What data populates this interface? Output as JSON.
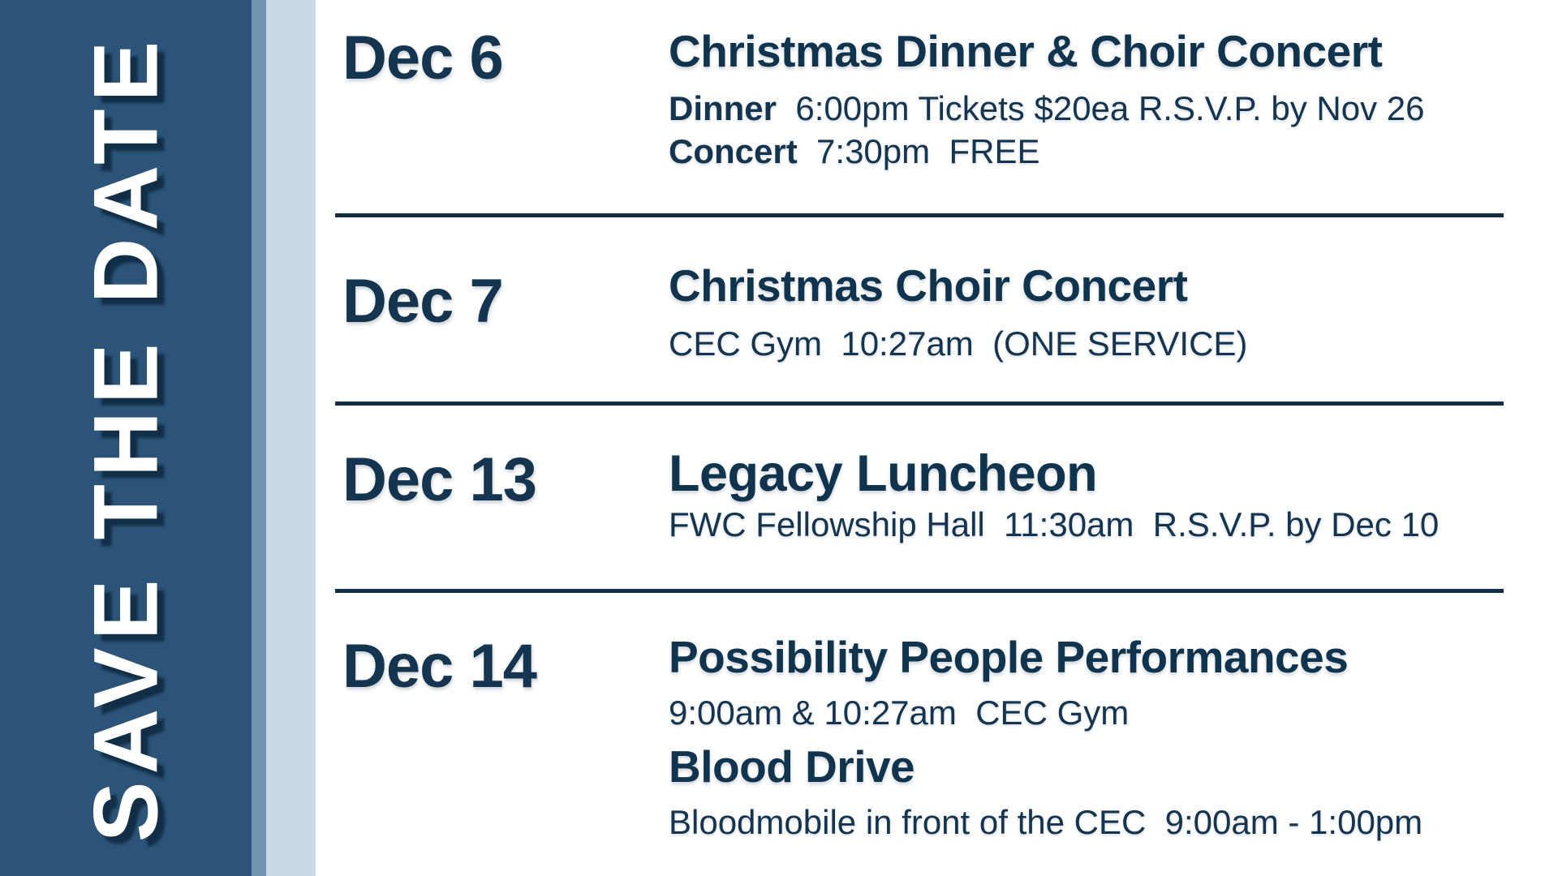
{
  "banner": {
    "text": "SAVE THE DATE"
  },
  "colors": {
    "panel": "#2B5478",
    "stripe_medium": "#7093B1",
    "stripe_light": "#C9D9E7",
    "text_navy": "#14344F",
    "divider": "#132E46",
    "banner_text": "#FFFFFF"
  },
  "events": [
    {
      "date": "Dec 6",
      "title": "Christmas Dinner & Choir Concert",
      "lines": [
        {
          "label": "Dinner",
          "text": "  6:00pm Tickets $20ea R.S.V.P. by Nov 26"
        },
        {
          "label": "Concert",
          "text": "  7:30pm  FREE"
        }
      ]
    },
    {
      "date": "Dec 7",
      "title": "Christmas Choir Concert",
      "lines": [
        {
          "label": "",
          "text": "CEC Gym  10:27am  (ONE SERVICE)"
        }
      ]
    },
    {
      "date": "Dec 13",
      "title": "Legacy Luncheon",
      "lines": [
        {
          "label": "",
          "text": "FWC Fellowship Hall  11:30am  R.S.V.P. by Dec 10"
        }
      ]
    },
    {
      "date": "Dec 14",
      "title": "Possibility People Performances",
      "lines": [
        {
          "label": "",
          "text": "9:00am & 10:27am  CEC Gym"
        }
      ],
      "subtitle": "Blood Drive",
      "sublines": [
        {
          "label": "",
          "text": "Bloodmobile in front of the CEC  9:00am - 1:00pm"
        }
      ]
    }
  ]
}
